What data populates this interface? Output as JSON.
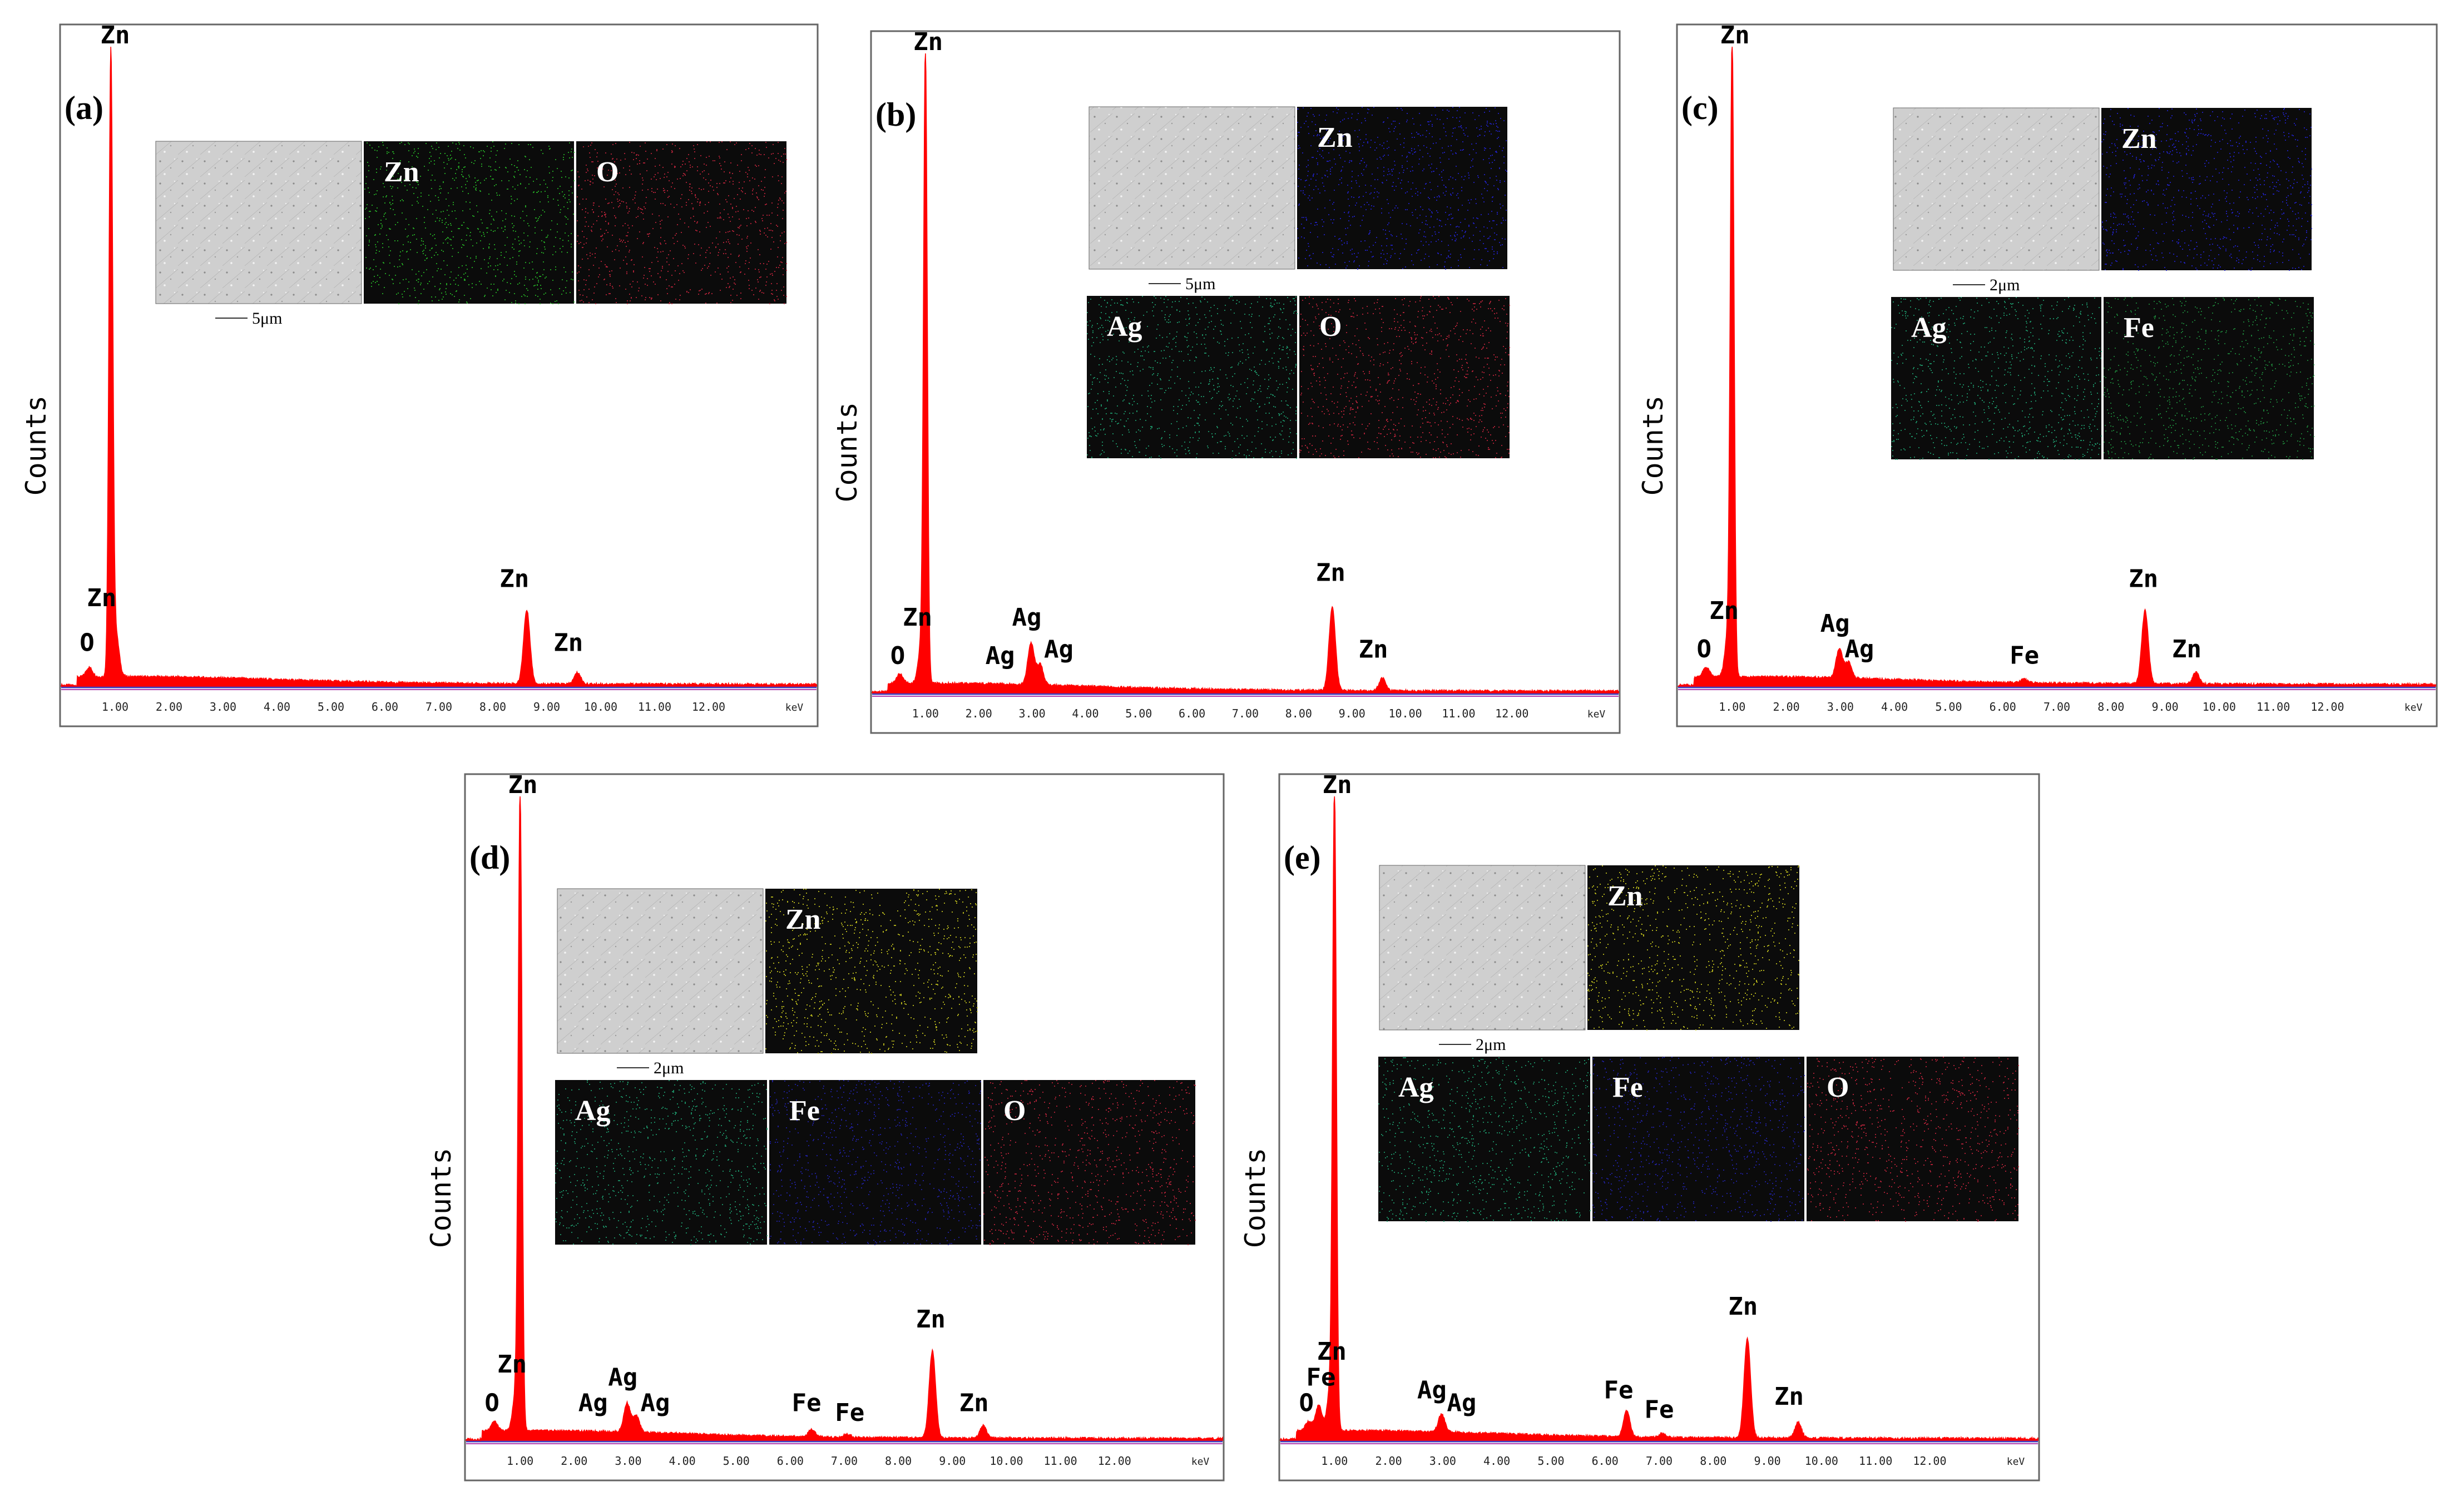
{
  "colors": {
    "spectrum": "#ff0000",
    "frame": "#666666",
    "baseline_blue": "#3f3fbf",
    "baseline_purple": "#b040b0",
    "map_bg": "#0b0b0b",
    "map_text": "#ffffff",
    "element_colors": {
      "Zn_green": "#27b527",
      "Zn_blue": "#2222cc",
      "Zn_yellow": "#c8c81e",
      "O": "#c0243c",
      "Ag": "#1e9e6e",
      "Fe_green": "#1e8a3c",
      "Fe_blue": "#2222aa"
    }
  },
  "chart_data": [
    {
      "panel_label": "(a)",
      "type": "line",
      "ylabel": "Counts",
      "x_unit": "keV",
      "x_ticks": [
        "1.00",
        "2.00",
        "3.00",
        "4.00",
        "5.00",
        "6.00",
        "7.00",
        "8.00",
        "9.00",
        "10.00",
        "11.00",
        "12.00"
      ],
      "xlim": [
        0,
        14.0
      ],
      "ylim": [
        0,
        100
      ],
      "peaks": [
        {
          "element": "O",
          "x": 0.52,
          "y": 1.5
        },
        {
          "element": "Zn",
          "x": 0.92,
          "y": 97.0
        },
        {
          "element": "Zn",
          "x": 1.01,
          "y": 7.0
        },
        {
          "element": "Zn",
          "x": 8.63,
          "y": 11.5
        },
        {
          "element": "Zn",
          "x": 9.57,
          "y": 1.8
        }
      ],
      "annotations": [
        {
          "text": "Zn",
          "x": 1.0,
          "y": 100
        },
        {
          "text": "Zn",
          "x": 0.75,
          "y": 12
        },
        {
          "text": "O",
          "x": 0.48,
          "y": 5
        },
        {
          "text": "Zn",
          "x": 8.4,
          "y": 15
        },
        {
          "text": "Zn",
          "x": 9.4,
          "y": 5
        }
      ],
      "inset": {
        "sem_scale": "5μm",
        "map_rows": [
          [
            "Zn",
            "O"
          ]
        ],
        "map_colors": [
          [
            "Zn_green",
            "O"
          ]
        ]
      }
    },
    {
      "panel_label": "(b)",
      "type": "line",
      "ylabel": "Counts",
      "x_unit": "keV",
      "x_ticks": [
        "1.00",
        "2.00",
        "3.00",
        "4.00",
        "5.00",
        "6.00",
        "7.00",
        "8.00",
        "9.00",
        "10.00",
        "11.00",
        "12.00"
      ],
      "xlim": [
        0,
        14.0
      ],
      "ylim": [
        0,
        100
      ],
      "peaks": [
        {
          "element": "O",
          "x": 0.52,
          "y": 1.5
        },
        {
          "element": "Zn",
          "x": 1.0,
          "y": 97.0
        },
        {
          "element": "Zn",
          "x": 0.93,
          "y": 6.5
        },
        {
          "element": "Ag",
          "x": 2.98,
          "y": 6.5
        },
        {
          "element": "Ag",
          "x": 3.15,
          "y": 3.2
        },
        {
          "element": "Zn",
          "x": 8.63,
          "y": 13.0
        },
        {
          "element": "Zn",
          "x": 9.57,
          "y": 2.0
        }
      ],
      "annotations": [
        {
          "text": "Zn",
          "x": 1.05,
          "y": 100
        },
        {
          "text": "Zn",
          "x": 0.85,
          "y": 10
        },
        {
          "text": "O",
          "x": 0.48,
          "y": 4
        },
        {
          "text": "Ag",
          "x": 2.9,
          "y": 10
        },
        {
          "text": "Ag",
          "x": 2.4,
          "y": 4
        },
        {
          "text": "Ag",
          "x": 3.5,
          "y": 5
        },
        {
          "text": "Zn",
          "x": 8.6,
          "y": 17
        },
        {
          "text": "Zn",
          "x": 9.4,
          "y": 5
        }
      ],
      "inset": {
        "sem_scale": "5μm",
        "map_rows": [
          [
            "Zn"
          ],
          [
            "Ag",
            "O"
          ]
        ],
        "map_colors": [
          [
            "Zn_blue"
          ],
          [
            "Ag",
            "O"
          ]
        ]
      }
    },
    {
      "panel_label": "(c)",
      "type": "line",
      "ylabel": "Counts",
      "x_unit": "keV",
      "x_ticks": [
        "1.00",
        "2.00",
        "3.00",
        "4.00",
        "5.00",
        "6.00",
        "7.00",
        "8.00",
        "9.00",
        "10.00",
        "11.00",
        "12.00"
      ],
      "xlim": [
        0,
        14.0
      ],
      "ylim": [
        0,
        100
      ],
      "peaks": [
        {
          "element": "O",
          "x": 0.52,
          "y": 1.5
        },
        {
          "element": "Zn",
          "x": 1.0,
          "y": 97.0
        },
        {
          "element": "Zn",
          "x": 0.93,
          "y": 7.0
        },
        {
          "element": "Ag",
          "x": 2.98,
          "y": 4.5
        },
        {
          "element": "Ag",
          "x": 3.15,
          "y": 2.5
        },
        {
          "element": "Fe",
          "x": 6.4,
          "y": 0.6
        },
        {
          "element": "Zn",
          "x": 8.63,
          "y": 11.5
        },
        {
          "element": "Zn",
          "x": 9.57,
          "y": 1.8
        }
      ],
      "annotations": [
        {
          "text": "Zn",
          "x": 1.05,
          "y": 100
        },
        {
          "text": "Zn",
          "x": 0.85,
          "y": 10
        },
        {
          "text": "O",
          "x": 0.48,
          "y": 4
        },
        {
          "text": "Ag",
          "x": 2.9,
          "y": 8
        },
        {
          "text": "Ag",
          "x": 3.35,
          "y": 4
        },
        {
          "text": "Fe",
          "x": 6.4,
          "y": 3
        },
        {
          "text": "Zn",
          "x": 8.6,
          "y": 15
        },
        {
          "text": "Zn",
          "x": 9.4,
          "y": 4
        }
      ],
      "inset": {
        "sem_scale": "2μm",
        "map_rows": [
          [
            "Zn"
          ],
          [
            "Ag",
            "Fe"
          ]
        ],
        "map_colors": [
          [
            "Zn_blue"
          ],
          [
            "Ag",
            "Fe_green"
          ]
        ]
      }
    },
    {
      "panel_label": "(d)",
      "type": "line",
      "ylabel": "Counts",
      "x_unit": "keV",
      "x_ticks": [
        "1.00",
        "2.00",
        "3.00",
        "4.00",
        "5.00",
        "6.00",
        "7.00",
        "8.00",
        "9.00",
        "10.00",
        "11.00",
        "12.00"
      ],
      "xlim": [
        0,
        14.0
      ],
      "ylim": [
        0,
        100
      ],
      "peaks": [
        {
          "element": "O",
          "x": 0.52,
          "y": 1.5
        },
        {
          "element": "Zn",
          "x": 1.0,
          "y": 97.0
        },
        {
          "element": "Zn",
          "x": 0.93,
          "y": 6.5
        },
        {
          "element": "Ag",
          "x": 2.98,
          "y": 4.5
        },
        {
          "element": "Ag",
          "x": 3.15,
          "y": 2.5
        },
        {
          "element": "Fe",
          "x": 6.4,
          "y": 1.2
        },
        {
          "element": "Fe",
          "x": 7.06,
          "y": 0.5
        },
        {
          "element": "Zn",
          "x": 8.63,
          "y": 13.5
        },
        {
          "element": "Zn",
          "x": 9.57,
          "y": 2.0
        }
      ],
      "annotations": [
        {
          "text": "Zn",
          "x": 1.05,
          "y": 100
        },
        {
          "text": "Zn",
          "x": 0.85,
          "y": 10
        },
        {
          "text": "O",
          "x": 0.48,
          "y": 4
        },
        {
          "text": "Ag",
          "x": 2.9,
          "y": 8
        },
        {
          "text": "Ag",
          "x": 2.35,
          "y": 4
        },
        {
          "text": "Ag",
          "x": 3.5,
          "y": 4
        },
        {
          "text": "Fe",
          "x": 6.3,
          "y": 4
        },
        {
          "text": "Fe",
          "x": 7.1,
          "y": 2.5
        },
        {
          "text": "Zn",
          "x": 8.6,
          "y": 17
        },
        {
          "text": "Zn",
          "x": 9.4,
          "y": 4
        }
      ],
      "inset": {
        "sem_scale": "2μm",
        "map_rows": [
          [
            "Zn"
          ],
          [
            "Ag",
            "Fe",
            "O"
          ]
        ],
        "map_colors": [
          [
            "Zn_yellow"
          ],
          [
            "Ag",
            "Fe_blue",
            "O"
          ]
        ]
      }
    },
    {
      "panel_label": "(e)",
      "type": "line",
      "ylabel": "Counts",
      "x_unit": "keV",
      "x_ticks": [
        "1.00",
        "2.00",
        "3.00",
        "4.00",
        "5.00",
        "6.00",
        "7.00",
        "8.00",
        "9.00",
        "10.00",
        "11.00",
        "12.00"
      ],
      "xlim": [
        0,
        14.0
      ],
      "ylim": [
        0,
        100
      ],
      "peaks": [
        {
          "element": "O",
          "x": 0.52,
          "y": 1.5
        },
        {
          "element": "Fe",
          "x": 0.71,
          "y": 4.0
        },
        {
          "element": "Zn",
          "x": 1.0,
          "y": 97.0
        },
        {
          "element": "Zn",
          "x": 0.93,
          "y": 7.0
        },
        {
          "element": "Ag",
          "x": 2.98,
          "y": 2.8
        },
        {
          "element": "Fe",
          "x": 6.4,
          "y": 4.0
        },
        {
          "element": "Fe",
          "x": 7.06,
          "y": 0.6
        },
        {
          "element": "Zn",
          "x": 8.63,
          "y": 15.5
        },
        {
          "element": "Zn",
          "x": 9.57,
          "y": 2.5
        }
      ],
      "annotations": [
        {
          "text": "Zn",
          "x": 1.05,
          "y": 100
        },
        {
          "text": "Zn",
          "x": 0.95,
          "y": 12
        },
        {
          "text": "Fe",
          "x": 0.75,
          "y": 8
        },
        {
          "text": "O",
          "x": 0.48,
          "y": 4
        },
        {
          "text": "Ag",
          "x": 2.8,
          "y": 6
        },
        {
          "text": "Ag",
          "x": 3.35,
          "y": 4
        },
        {
          "text": "Fe",
          "x": 6.25,
          "y": 6
        },
        {
          "text": "Fe",
          "x": 7.0,
          "y": 3
        },
        {
          "text": "Zn",
          "x": 8.55,
          "y": 19
        },
        {
          "text": "Zn",
          "x": 9.4,
          "y": 5
        }
      ],
      "inset": {
        "sem_scale": "2μm",
        "map_rows": [
          [
            "Zn"
          ],
          [
            "Ag",
            "Fe",
            "O"
          ]
        ],
        "map_colors": [
          [
            "Zn_yellow"
          ],
          [
            "Ag",
            "Fe_blue",
            "O"
          ]
        ]
      }
    }
  ]
}
